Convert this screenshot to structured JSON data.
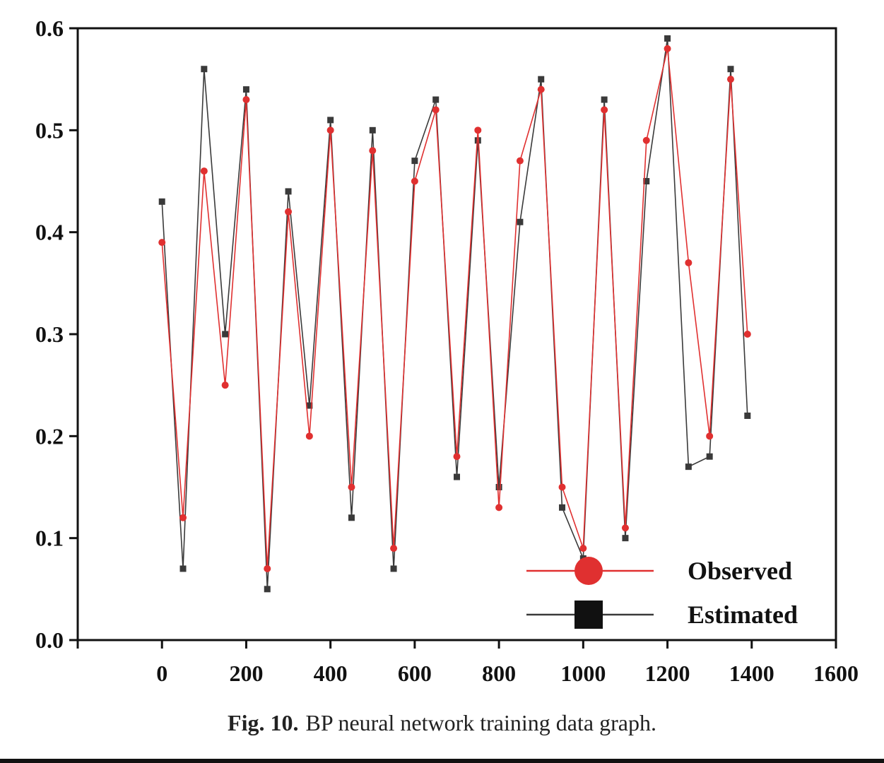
{
  "caption": {
    "label": "Fig. 10.",
    "text": "BP neural network training data graph."
  },
  "chart_data": {
    "type": "line",
    "xlim": [
      -200,
      1600
    ],
    "ylim": [
      0.0,
      0.6
    ],
    "x_ticks": [
      0,
      200,
      400,
      600,
      800,
      1000,
      1200,
      1400,
      1600
    ],
    "y_ticks": [
      0.0,
      0.1,
      0.2,
      0.3,
      0.4,
      0.5,
      0.6
    ],
    "x_tick_labels": [
      "0",
      "200",
      "400",
      "600",
      "800",
      "1000",
      "1200",
      "1400",
      "1600"
    ],
    "y_tick_labels": [
      "0.0",
      "0.1",
      "0.2",
      "0.3",
      "0.4",
      "0.5",
      "0.6"
    ],
    "grid": false,
    "legend_position": "bottom-right",
    "x": [
      0,
      50,
      100,
      150,
      200,
      250,
      300,
      350,
      400,
      450,
      500,
      550,
      600,
      650,
      700,
      750,
      800,
      850,
      900,
      950,
      1000,
      1050,
      1100,
      1150,
      1200,
      1250,
      1300,
      1350,
      1390
    ],
    "series": [
      {
        "name": "Observed",
        "color": "#e03030",
        "marker": "circle",
        "values": [
          0.39,
          0.12,
          0.46,
          0.25,
          0.53,
          0.07,
          0.42,
          0.2,
          0.5,
          0.15,
          0.48,
          0.09,
          0.45,
          0.52,
          0.18,
          0.5,
          0.13,
          0.47,
          0.54,
          0.15,
          0.09,
          0.52,
          0.11,
          0.49,
          0.58,
          0.37,
          0.2,
          0.55,
          0.3
        ]
      },
      {
        "name": "Estimated",
        "color": "#3a3a3a",
        "marker": "square",
        "values": [
          0.43,
          0.07,
          0.56,
          0.3,
          0.54,
          0.05,
          0.44,
          0.23,
          0.51,
          0.12,
          0.5,
          0.07,
          0.47,
          0.53,
          0.16,
          0.49,
          0.15,
          0.41,
          0.55,
          0.13,
          0.08,
          0.53,
          0.1,
          0.45,
          0.59,
          0.17,
          0.18,
          0.56,
          0.22
        ]
      }
    ]
  }
}
